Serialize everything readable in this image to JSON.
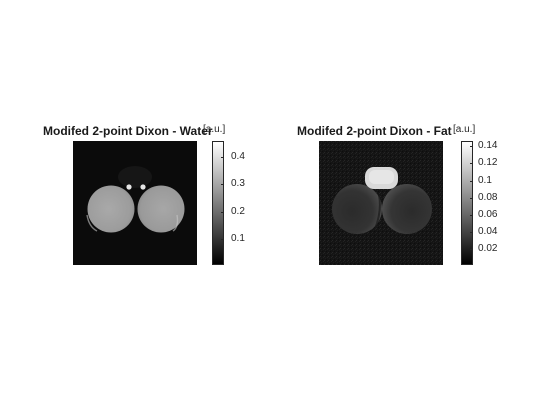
{
  "panels": [
    {
      "title": "Modifed 2-point Dixon - Water",
      "colorbar_unit": "[a.u.]",
      "colorbar_ticks": [
        "0.4",
        "0.3",
        "0.2",
        "0.1"
      ],
      "colormap": "gray"
    },
    {
      "title": "Modifed 2-point Dixon - Fat",
      "colorbar_unit": "[a.u.]",
      "colorbar_ticks": [
        "0.14",
        "0.12",
        "0.1",
        "0.08",
        "0.06",
        "0.04",
        "0.02"
      ],
      "colormap": "gray"
    }
  ]
}
